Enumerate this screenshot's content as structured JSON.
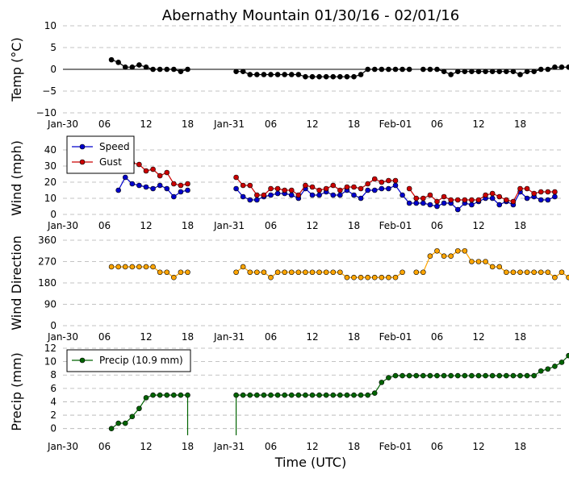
{
  "chart_data": {
    "title": "Abernathy Mountain 01/30/16 - 02/01/16",
    "xlabel": "Time (UTC)",
    "x_tick_labels": [
      "Jan-30",
      "06",
      "12",
      "18",
      "Jan-31",
      "06",
      "12",
      "18",
      "Feb-01",
      "06",
      "12",
      "18"
    ],
    "x_range_hours": [
      0,
      72
    ],
    "panels": [
      {
        "id": "temp",
        "type": "line",
        "ylabel": "Temp (°C)",
        "ylim": [
          -10,
          10
        ],
        "yticks": [
          -10,
          -5,
          0,
          5,
          10
        ],
        "grid": true,
        "zero_line": true,
        "series": [
          {
            "color": "#000000",
            "start_hour": 7,
            "values": [
              2.2,
              1.6,
              0.5,
              0.5,
              1.0,
              0.5,
              0,
              0,
              0,
              0,
              -0.5,
              0,
              null,
              null,
              null,
              null,
              null,
              null,
              -0.5,
              -0.5,
              -1.2,
              -1.2,
              -1.2,
              -1.2,
              -1.2,
              -1.2,
              -1.2,
              -1.2,
              -1.7,
              -1.7,
              -1.7,
              -1.7,
              -1.7,
              -1.7,
              -1.7,
              -1.7,
              -1.2,
              0,
              0,
              0,
              0,
              0,
              0,
              0,
              null,
              0,
              0,
              0,
              -0.5,
              -1.2,
              -0.5,
              -0.5,
              -0.5,
              -0.5,
              -0.5,
              -0.5,
              -0.5,
              -0.5,
              -0.5,
              -1.2,
              -0.5,
              -0.5,
              0,
              0,
              0.5,
              0.5,
              0.5,
              0.5
            ]
          }
        ]
      },
      {
        "id": "wind",
        "type": "line",
        "ylabel": "Wind (mph)",
        "ylim": [
          0,
          45
        ],
        "yticks": [
          0,
          10,
          20,
          30,
          40
        ],
        "grid": true,
        "legend": "upper-left",
        "series": [
          {
            "name": "Speed",
            "color": "#0000cc",
            "start_hour": 7,
            "values": [
              null,
              15,
              23,
              19,
              18,
              17,
              16,
              18,
              16,
              11,
              14,
              15,
              null,
              null,
              null,
              null,
              null,
              null,
              16,
              11,
              9,
              9,
              11,
              12,
              13,
              13,
              12,
              10,
              16,
              12,
              12,
              14,
              12,
              12,
              15,
              12,
              10,
              15,
              15,
              16,
              16,
              18,
              12,
              7,
              7,
              7,
              6,
              5,
              7,
              7,
              3,
              7,
              6,
              8,
              10,
              10,
              6,
              8,
              6,
              14,
              10,
              11,
              9,
              9,
              11
            ]
          },
          {
            "name": "Gust",
            "color": "#cc0000",
            "start_hour": 7,
            "values": [
              null,
              null,
              null,
              32,
              31,
              27,
              28,
              24,
              26,
              19,
              18,
              19,
              null,
              null,
              null,
              null,
              null,
              null,
              23,
              18,
              18,
              12,
              12,
              16,
              16,
              15,
              15,
              12,
              18,
              17,
              15,
              16,
              18,
              15,
              17,
              17,
              16,
              19,
              22,
              20,
              21,
              21,
              null,
              16,
              10,
              10,
              12,
              8,
              11,
              9,
              9,
              9,
              9,
              9,
              12,
              13,
              11,
              9,
              8,
              16,
              16,
              13,
              14,
              14,
              14
            ]
          }
        ]
      },
      {
        "id": "direction",
        "type": "scatter-line",
        "ylabel": "Wind Direction",
        "ylim": [
          0,
          360
        ],
        "yticks": [
          0,
          90,
          180,
          270,
          360
        ],
        "grid": true,
        "series": [
          {
            "color": "#ffa500",
            "start_hour": 7,
            "values": [
              248,
              248,
              248,
              248,
              248,
              248,
              248,
              225,
              225,
              203,
              225,
              225,
              null,
              null,
              null,
              null,
              null,
              null,
              225,
              248,
              225,
              225,
              225,
              203,
              225,
              225,
              225,
              225,
              225,
              225,
              225,
              225,
              225,
              225,
              203,
              203,
              203,
              203,
              203,
              203,
              203,
              203,
              225,
              null,
              225,
              225,
              293,
              315,
              293,
              293,
              315,
              315,
              270,
              270,
              270,
              248,
              248,
              225,
              225,
              225,
              225,
              225,
              225,
              225,
              203,
              225,
              203
            ]
          }
        ]
      },
      {
        "id": "precip",
        "type": "line",
        "ylabel": "Precip (mm)",
        "ylim": [
          -1,
          12
        ],
        "yticks": [
          0,
          2,
          4,
          6,
          8,
          10,
          12
        ],
        "grid": true,
        "legend": "upper-left",
        "series": [
          {
            "name": "Precip (10.9 mm)",
            "color": "#006400",
            "start_hour": 7,
            "values": [
              0,
              0.8,
              0.8,
              1.8,
              3.0,
              4.6,
              5.0,
              5.0,
              5.0,
              5.0,
              5.0,
              5.0,
              null,
              null,
              null,
              null,
              null,
              null,
              5.0,
              5.0,
              5.0,
              5.0,
              5.0,
              5.0,
              5.0,
              5.0,
              5.0,
              5.0,
              5.0,
              5.0,
              5.0,
              5.0,
              5.0,
              5.0,
              5.0,
              5.0,
              5.0,
              5.0,
              5.3,
              6.9,
              7.6,
              7.9,
              7.9,
              7.9,
              7.9,
              7.9,
              7.9,
              7.9,
              7.9,
              7.9,
              7.9,
              7.9,
              7.9,
              7.9,
              7.9,
              7.9,
              7.9,
              7.9,
              7.9,
              7.9,
              7.9,
              7.9,
              8.6,
              8.9,
              9.3,
              9.9,
              10.9
            ]
          }
        ]
      }
    ]
  }
}
